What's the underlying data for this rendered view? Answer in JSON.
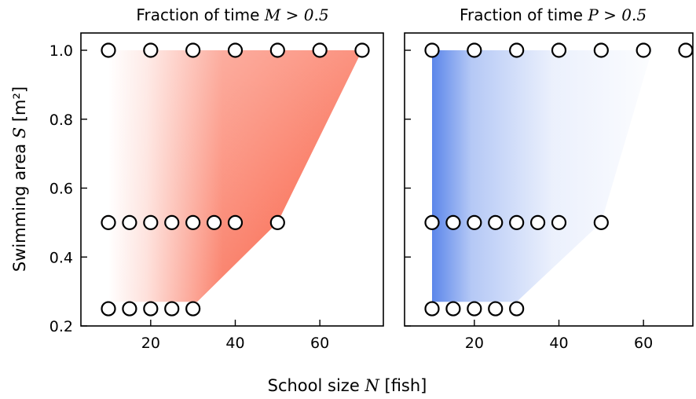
{
  "chart_data": [
    {
      "type": "area",
      "title_prefix": "Fraction of time",
      "title_math": "M > 0.5",
      "xlabel_prefix": "School size",
      "xlabel_math": "N",
      "xlabel_suffix": "[fish]",
      "ylabel_prefix": "Swimming area",
      "ylabel_math": "S",
      "ylabel_suffix": "[m²]",
      "xlim": [
        4,
        74
      ],
      "ylim": [
        0.2,
        1.05
      ],
      "xticks": [
        20,
        40,
        60
      ],
      "yticks": [
        0.2,
        0.4,
        0.6,
        0.8,
        1.0
      ],
      "ytick_labels": [
        "0.2",
        "0.4",
        "0.6",
        "0.8",
        "1.0"
      ],
      "color": "#f9573a",
      "grid": false,
      "points": [
        [
          10,
          1.0
        ],
        [
          20,
          1.0
        ],
        [
          30,
          1.0
        ],
        [
          40,
          1.0
        ],
        [
          50,
          1.0
        ],
        [
          60,
          1.0
        ],
        [
          70,
          1.0
        ],
        [
          10,
          0.5
        ],
        [
          15,
          0.5
        ],
        [
          20,
          0.5
        ],
        [
          25,
          0.5
        ],
        [
          30,
          0.5
        ],
        [
          35,
          0.5
        ],
        [
          40,
          0.5
        ],
        [
          50,
          0.5
        ],
        [
          10,
          0.25
        ],
        [
          15,
          0.25
        ],
        [
          20,
          0.25
        ],
        [
          25,
          0.25
        ],
        [
          30,
          0.25
        ]
      ],
      "region": [
        [
          10,
          1.0
        ],
        [
          70,
          1.0
        ],
        [
          50,
          0.5
        ],
        [
          31,
          0.27
        ],
        [
          10,
          0.27
        ]
      ]
    },
    {
      "type": "area",
      "title_prefix": "Fraction of time",
      "title_math": "P > 0.5",
      "xlim": [
        4,
        74
      ],
      "ylim": [
        0.2,
        1.05
      ],
      "xticks": [
        20,
        40,
        60
      ],
      "yticks": [
        0.2,
        0.4,
        0.6,
        0.8,
        1.0
      ],
      "color": "#5b86ea",
      "grid": false,
      "points": [
        [
          10,
          1.0
        ],
        [
          20,
          1.0
        ],
        [
          30,
          1.0
        ],
        [
          40,
          1.0
        ],
        [
          50,
          1.0
        ],
        [
          60,
          1.0
        ],
        [
          70,
          1.0
        ],
        [
          10,
          0.5
        ],
        [
          15,
          0.5
        ],
        [
          20,
          0.5
        ],
        [
          25,
          0.5
        ],
        [
          30,
          0.5
        ],
        [
          35,
          0.5
        ],
        [
          40,
          0.5
        ],
        [
          50,
          0.5
        ],
        [
          10,
          0.25
        ],
        [
          15,
          0.25
        ],
        [
          20,
          0.25
        ],
        [
          25,
          0.25
        ],
        [
          30,
          0.25
        ]
      ],
      "region": [
        [
          10,
          1.0
        ],
        [
          62,
          1.0
        ],
        [
          50,
          0.5
        ],
        [
          30,
          0.27
        ],
        [
          10,
          0.27
        ]
      ]
    }
  ]
}
